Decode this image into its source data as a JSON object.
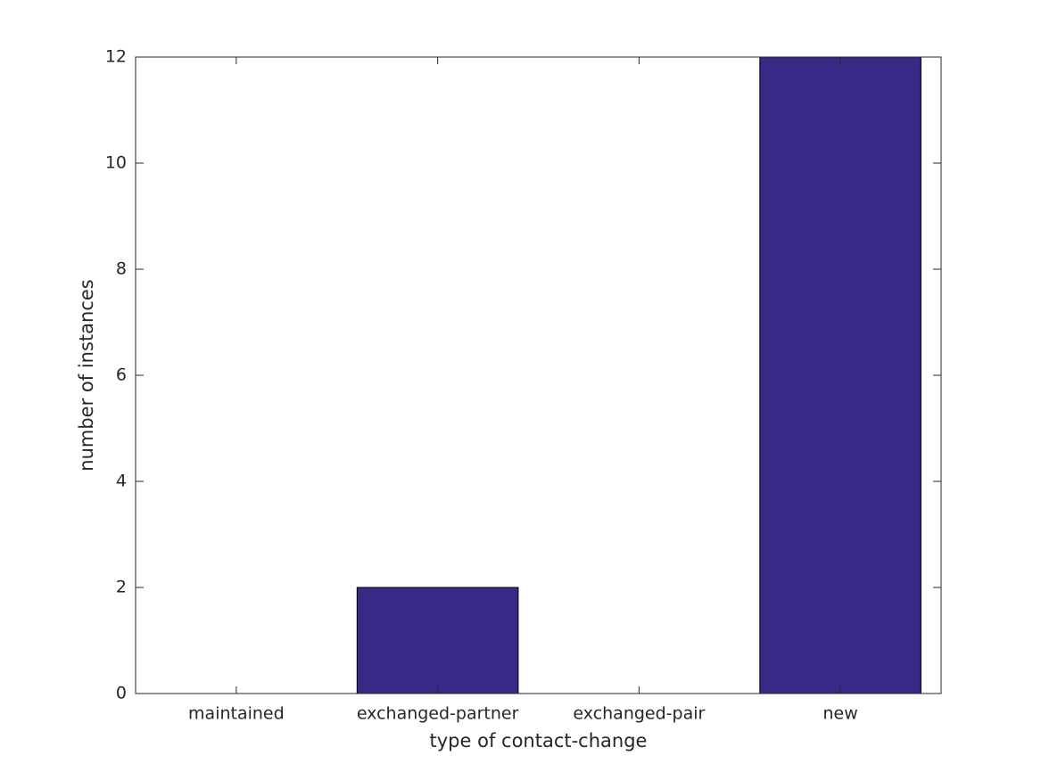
{
  "chart_data": {
    "type": "bar",
    "xlabel": "type of contact-change",
    "ylabel": "number of instances",
    "categories": [
      "maintained",
      "exchanged-partner",
      "exchanged-pair",
      "new"
    ],
    "values": [
      0,
      2,
      0,
      12
    ],
    "color": "#362a86",
    "ylim": [
      0,
      12
    ],
    "yticks": [
      0,
      2,
      4,
      6,
      8,
      10,
      12
    ],
    "grid": false
  }
}
